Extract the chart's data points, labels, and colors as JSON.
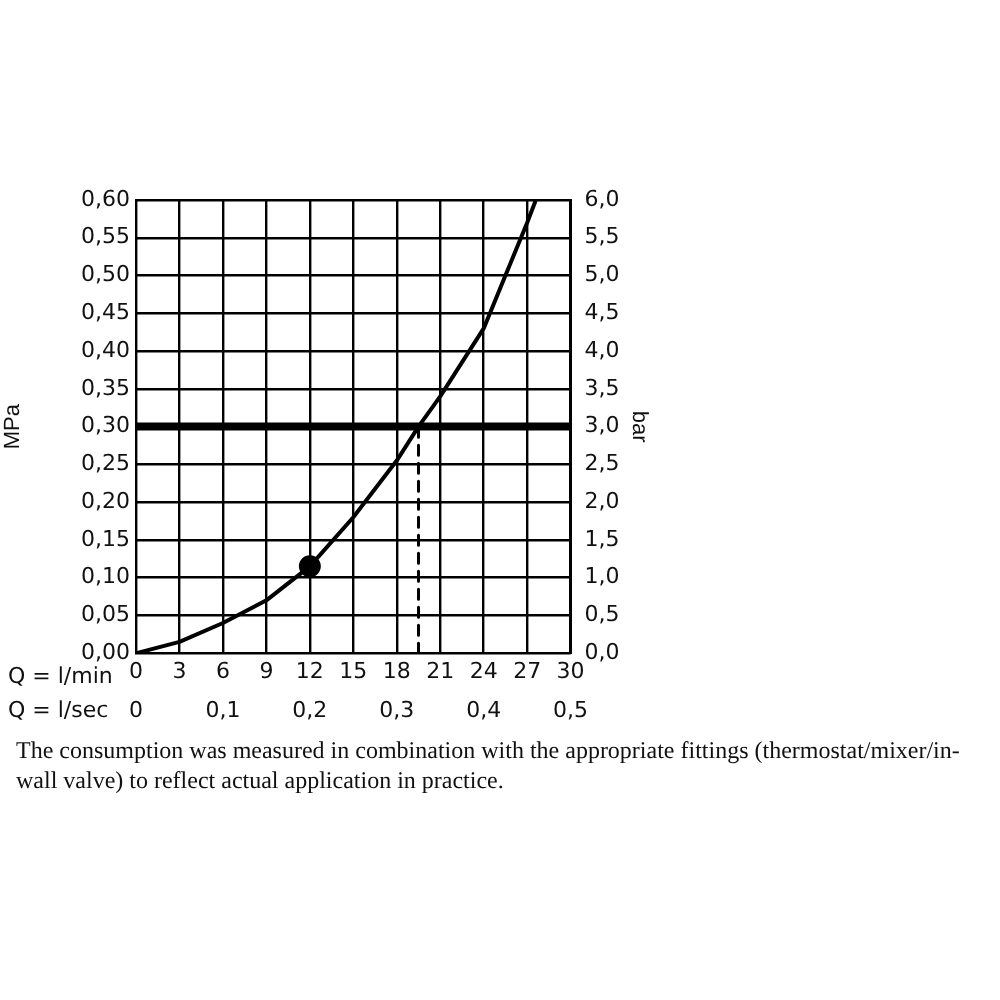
{
  "chart_data": {
    "type": "line",
    "xlabel": "Q = l/min",
    "x2label": "Q = l/sec",
    "ylabel": "MPa",
    "y2label": "bar",
    "xlim": [
      0,
      30
    ],
    "xticks": [
      0,
      3,
      6,
      9,
      12,
      15,
      18,
      21,
      24,
      27,
      30
    ],
    "x2lim": [
      0,
      0.5
    ],
    "x2ticks": [
      0,
      {
        "value": 0.1,
        "label": "0,1"
      },
      {
        "value": 0.2,
        "label": "0,2"
      },
      {
        "value": 0.3,
        "label": "0,3"
      },
      {
        "value": 0.4,
        "label": "0,4"
      },
      {
        "value": 0.5,
        "label": "0,5"
      }
    ],
    "ylim": [
      0,
      0.6
    ],
    "yticks": [
      {
        "value": 0,
        "label": "0,00"
      },
      {
        "value": 0.05,
        "label": "0,05"
      },
      {
        "value": 0.1,
        "label": "0,10"
      },
      {
        "value": 0.15,
        "label": "0,15"
      },
      {
        "value": 0.2,
        "label": "0,20"
      },
      {
        "value": 0.25,
        "label": "0,25"
      },
      {
        "value": 0.3,
        "label": "0,30"
      },
      {
        "value": 0.35,
        "label": "0,35"
      },
      {
        "value": 0.4,
        "label": "0,40"
      },
      {
        "value": 0.45,
        "label": "0,45"
      },
      {
        "value": 0.5,
        "label": "0,50"
      },
      {
        "value": 0.55,
        "label": "0,55"
      },
      {
        "value": 0.6,
        "label": "0,60"
      }
    ],
    "y2lim": [
      0,
      6
    ],
    "y2ticks": [
      {
        "value": 0,
        "label": "0,0"
      },
      {
        "value": 0.5,
        "label": "0,5"
      },
      {
        "value": 1,
        "label": "1,0"
      },
      {
        "value": 1.5,
        "label": "1,5"
      },
      {
        "value": 2,
        "label": "2,0"
      },
      {
        "value": 2.5,
        "label": "2,5"
      },
      {
        "value": 3,
        "label": "3,0"
      },
      {
        "value": 3.5,
        "label": "3,5"
      },
      {
        "value": 4,
        "label": "4,0"
      },
      {
        "value": 4.5,
        "label": "4,5"
      },
      {
        "value": 5,
        "label": "5,0"
      },
      {
        "value": 5.5,
        "label": "5,5"
      },
      {
        "value": 6,
        "label": "6,0"
      }
    ],
    "grid": true,
    "legend": false,
    "series": [
      {
        "color": "#000000",
        "marker": "none",
        "line_style": "solid",
        "x": [
          0,
          3,
          6,
          9,
          12,
          15,
          18,
          19.5,
          21,
          24,
          25.5,
          27,
          27.6
        ],
        "values": [
          0,
          0.015,
          0.04,
          0.07,
          0.115,
          0.18,
          0.255,
          0.3,
          0.34,
          0.43,
          0.5,
          0.57,
          0.6
        ]
      },
      {
        "type": "line",
        "color": "#000000",
        "marker": "none",
        "line_style": "dashed",
        "x": [
          19.5,
          19.5
        ],
        "values": [
          0,
          0.3
        ]
      },
      {
        "type": "scatter",
        "color": "#000000",
        "marker": "circle",
        "x": [
          12
        ],
        "values": [
          0.115
        ]
      }
    ],
    "ref_lines": [
      {
        "axis": "y",
        "value": 0.3,
        "color": "#000000",
        "line_style": "solid"
      }
    ],
    "annotations": [
      "The consumption was measured in combination with the appropriate fittings (thermostat/mixer/in-wall valve) to reflect actual application in practice."
    ]
  }
}
